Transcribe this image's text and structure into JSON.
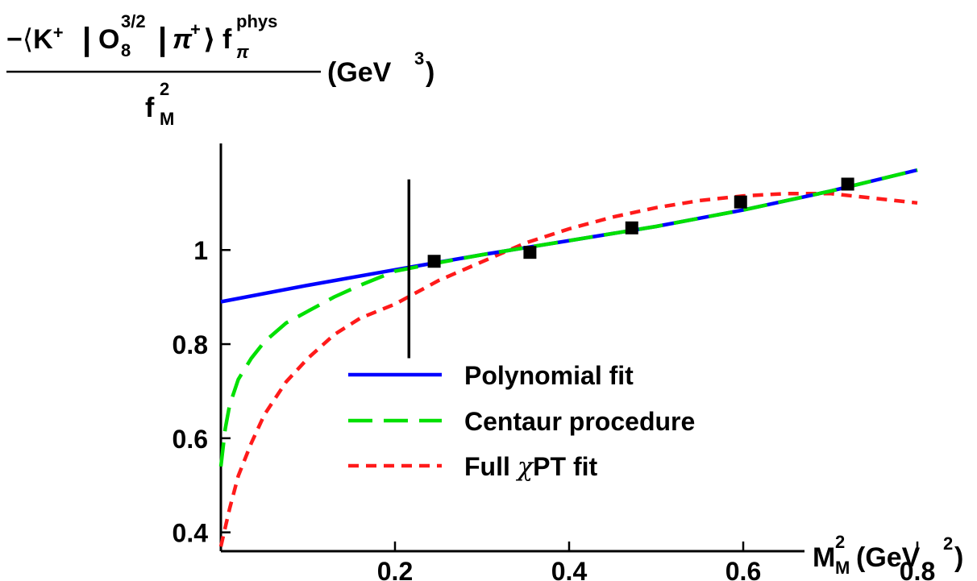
{
  "chart_data": {
    "type": "line",
    "xlabel": {
      "main": "M",
      "sup": "2",
      "sub": "M",
      "unit_open": "(GeV",
      "unit_sup": "2",
      "unit_close": ")"
    },
    "ylabel": {
      "minus": "−",
      "langle": "⟨",
      "K": "K",
      "K_sup": "+",
      "bar1": "|",
      "O": "O",
      "O_sup": "3/2",
      "O_sub": "8",
      "bar2": "|",
      "pi": "π",
      "pi_sup": "+",
      "rangle": "⟩",
      "f": "f",
      "f_sup": "phys",
      "f_sub": "π",
      "den_f": "f",
      "den_sup": "2",
      "den_sub": "M",
      "unit_open": "(GeV",
      "unit_sup": "3",
      "unit_close": ")"
    },
    "xlim": [
      0,
      1.12
    ],
    "ylim": [
      0.36,
      1.22
    ],
    "x_ticks": [
      0.2,
      0.4,
      0.6,
      0.8
    ],
    "x_tick_labels": [
      "0.2",
      "0.4",
      "0.6",
      "0.8"
    ],
    "y_ticks": [
      0.4,
      0.6,
      0.8,
      1.0
    ],
    "y_tick_labels": [
      "0.4",
      "0.6",
      "0.8",
      "1"
    ],
    "vertical_line": {
      "x": 0.216,
      "y_from": 0.77,
      "y_to": 1.15
    },
    "data_points": {
      "x": [
        0.245,
        0.355,
        0.472,
        0.597,
        0.72
      ],
      "y": [
        0.976,
        0.995,
        1.047,
        1.102,
        1.14
      ]
    },
    "series": [
      {
        "name": "Polynomial fit",
        "color": "#0000ff",
        "dash": "solid",
        "x": [
          0.0,
          0.1,
          0.2,
          0.3,
          0.4,
          0.5,
          0.6,
          0.7,
          0.8
        ],
        "y": [
          0.89,
          0.925,
          0.958,
          0.99,
          1.02,
          1.05,
          1.085,
          1.125,
          1.17
        ]
      },
      {
        "name": "Centaur procedure",
        "color": "#00e000",
        "dash": "long",
        "x": [
          0.0,
          0.005,
          0.01,
          0.02,
          0.035,
          0.05,
          0.075,
          0.1,
          0.13,
          0.16,
          0.2,
          0.25,
          0.3,
          0.4,
          0.5,
          0.6,
          0.7,
          0.8
        ],
        "y": [
          0.54,
          0.62,
          0.67,
          0.725,
          0.77,
          0.805,
          0.845,
          0.87,
          0.9,
          0.925,
          0.955,
          0.973,
          0.99,
          1.02,
          1.05,
          1.085,
          1.125,
          1.17
        ]
      },
      {
        "name": "Full χPT fit",
        "color": "#ff1a1a",
        "dash": "short",
        "x": [
          0.0,
          0.005,
          0.01,
          0.02,
          0.035,
          0.05,
          0.075,
          0.1,
          0.13,
          0.16,
          0.2,
          0.25,
          0.3,
          0.35,
          0.4,
          0.45,
          0.5,
          0.55,
          0.6,
          0.65,
          0.7,
          0.75,
          0.8
        ],
        "y": [
          0.37,
          0.41,
          0.45,
          0.52,
          0.59,
          0.65,
          0.72,
          0.77,
          0.82,
          0.855,
          0.885,
          0.935,
          0.975,
          1.015,
          1.045,
          1.07,
          1.09,
          1.105,
          1.115,
          1.12,
          1.12,
          1.11,
          1.1
        ]
      }
    ],
    "legend": {
      "position": "bottom-center",
      "entries": [
        {
          "label": "Polynomial fit",
          "color": "#0000ff",
          "dash": "solid"
        },
        {
          "label": "Centaur procedure",
          "color": "#00e000",
          "dash": "long"
        },
        {
          "label_pre": "Full ",
          "label_chi": "χ",
          "label_post": "PT fit",
          "color": "#ff1a1a",
          "dash": "short"
        }
      ]
    },
    "grid": false
  }
}
